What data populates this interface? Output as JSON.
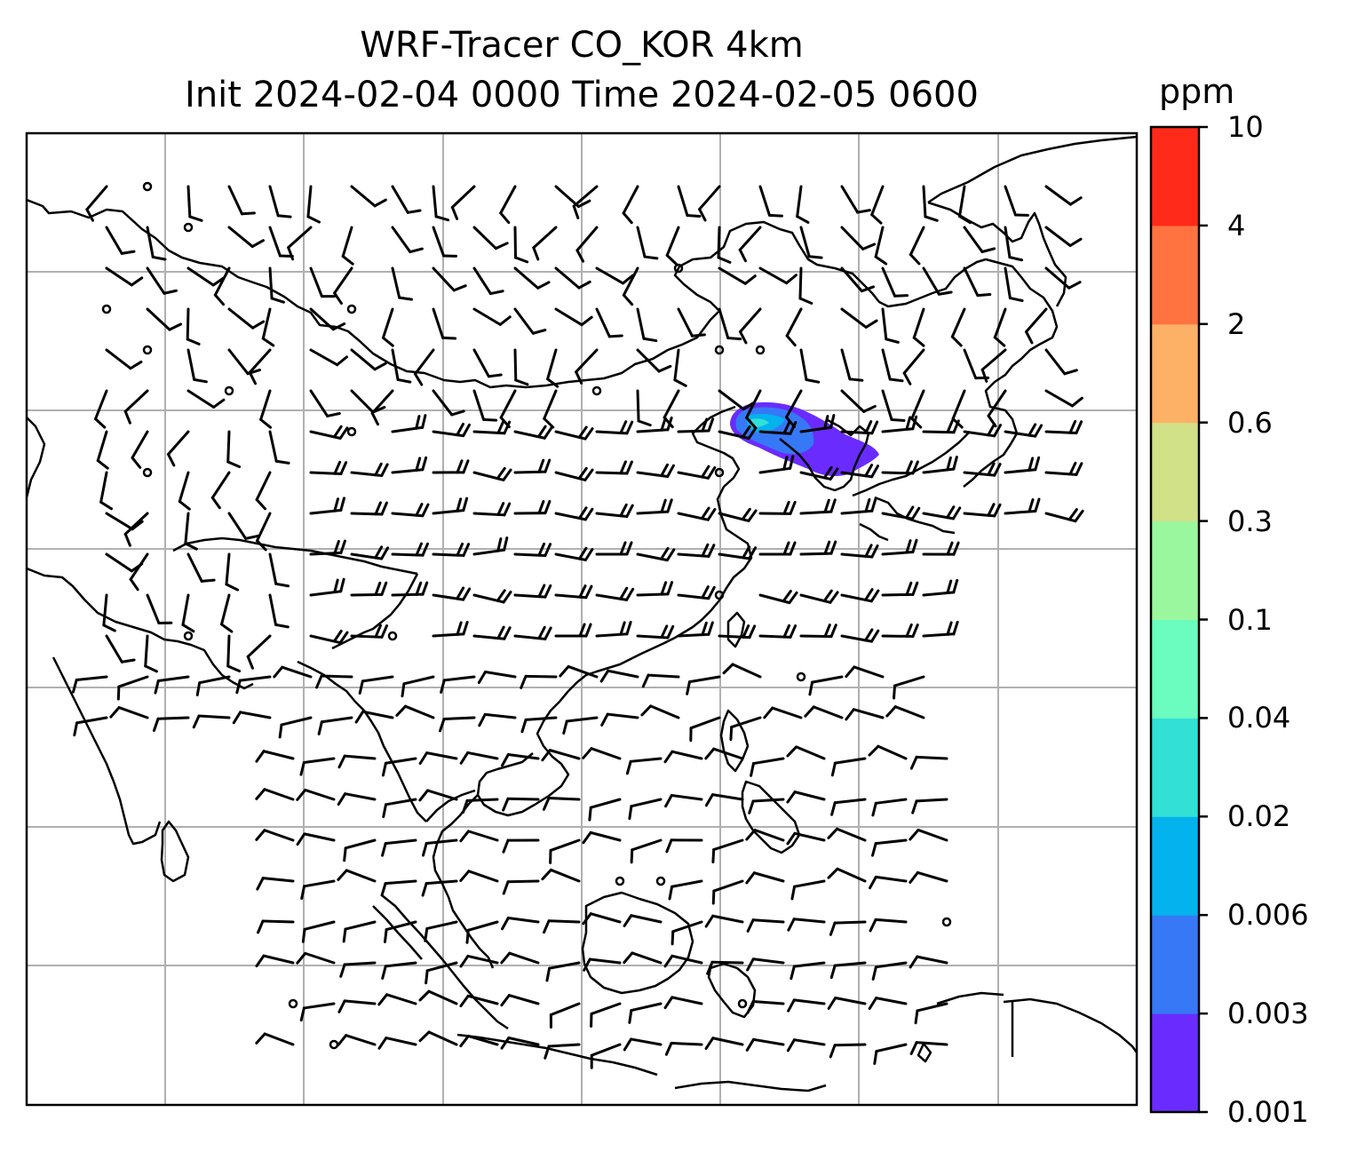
{
  "title": {
    "line1": "WRF-Tracer CO_KOR 4km",
    "line2": "Init 2024-02-04 0000 Time 2024-02-05 0600"
  },
  "colorbar": {
    "unit": "ppm",
    "levels": [
      "0.001",
      "0.003",
      "0.006",
      "0.02",
      "0.04",
      "0.1",
      "0.3",
      "0.6",
      "2",
      "4",
      "10"
    ],
    "colors": [
      "#6a2bff",
      "#3678f6",
      "#04b2ee",
      "#32e0d6",
      "#6bfcc0",
      "#9bf79e",
      "#d1e188",
      "#fdb167",
      "#ff7341",
      "#ff2a1a"
    ]
  },
  "map": {
    "gridlines": true,
    "grid_color": "#b0b0b0",
    "coastline_color": "#000000",
    "wind_barbs": true,
    "plume_levels_present": [
      "0.001",
      "0.003",
      "0.006",
      "0.02",
      "0.04"
    ]
  }
}
